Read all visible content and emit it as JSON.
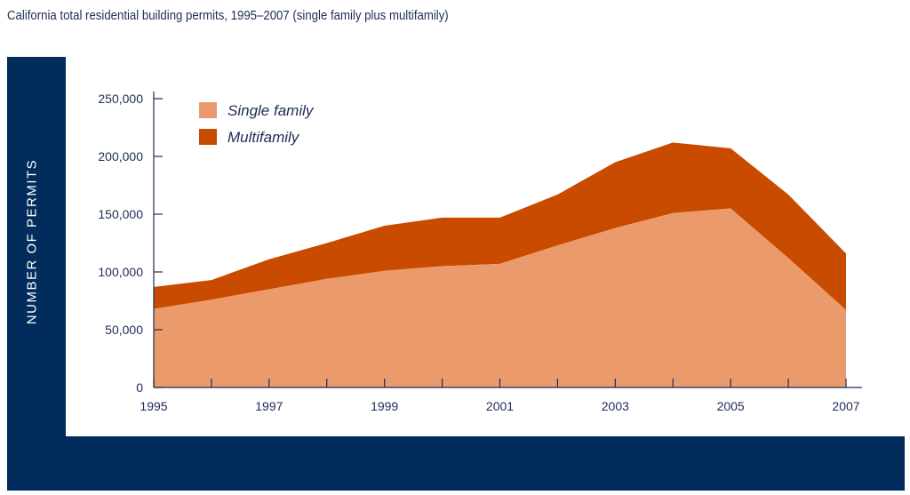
{
  "title": "California total residential building permits, 1995–2007 (single family plus multifamily)",
  "colors": {
    "frame": "#012c5c",
    "single_family": "#eb9a6c",
    "multifamily": "#c84b00",
    "text": "#1d2d55"
  },
  "chart_data": {
    "type": "area",
    "stacked": true,
    "title": "California total residential building permits, 1995–2007 (single family plus multifamily)",
    "xlabel": "",
    "ylabel": "NUMBER OF PERMITS",
    "x": [
      1995,
      1996,
      1997,
      1998,
      1999,
      2000,
      2001,
      2002,
      2003,
      2004,
      2005,
      2006,
      2007
    ],
    "x_tick_labels": [
      "1995",
      "1997",
      "1999",
      "2001",
      "2003",
      "2005",
      "2007"
    ],
    "y_tick_labels": [
      "0",
      "50,000",
      "100,000",
      "150,000",
      "200,000",
      "250,000"
    ],
    "ylim": [
      0,
      250000
    ],
    "legend_position": "top-left",
    "series": [
      {
        "name": "Single family",
        "values": [
          68000,
          76000,
          85000,
          94000,
          101000,
          105000,
          107000,
          123000,
          138000,
          151000,
          155000,
          112000,
          67000
        ]
      },
      {
        "name": "Multifamily",
        "values": [
          19000,
          17000,
          26000,
          31000,
          39000,
          42000,
          40000,
          44000,
          57000,
          61000,
          52000,
          55000,
          49000
        ]
      }
    ]
  }
}
